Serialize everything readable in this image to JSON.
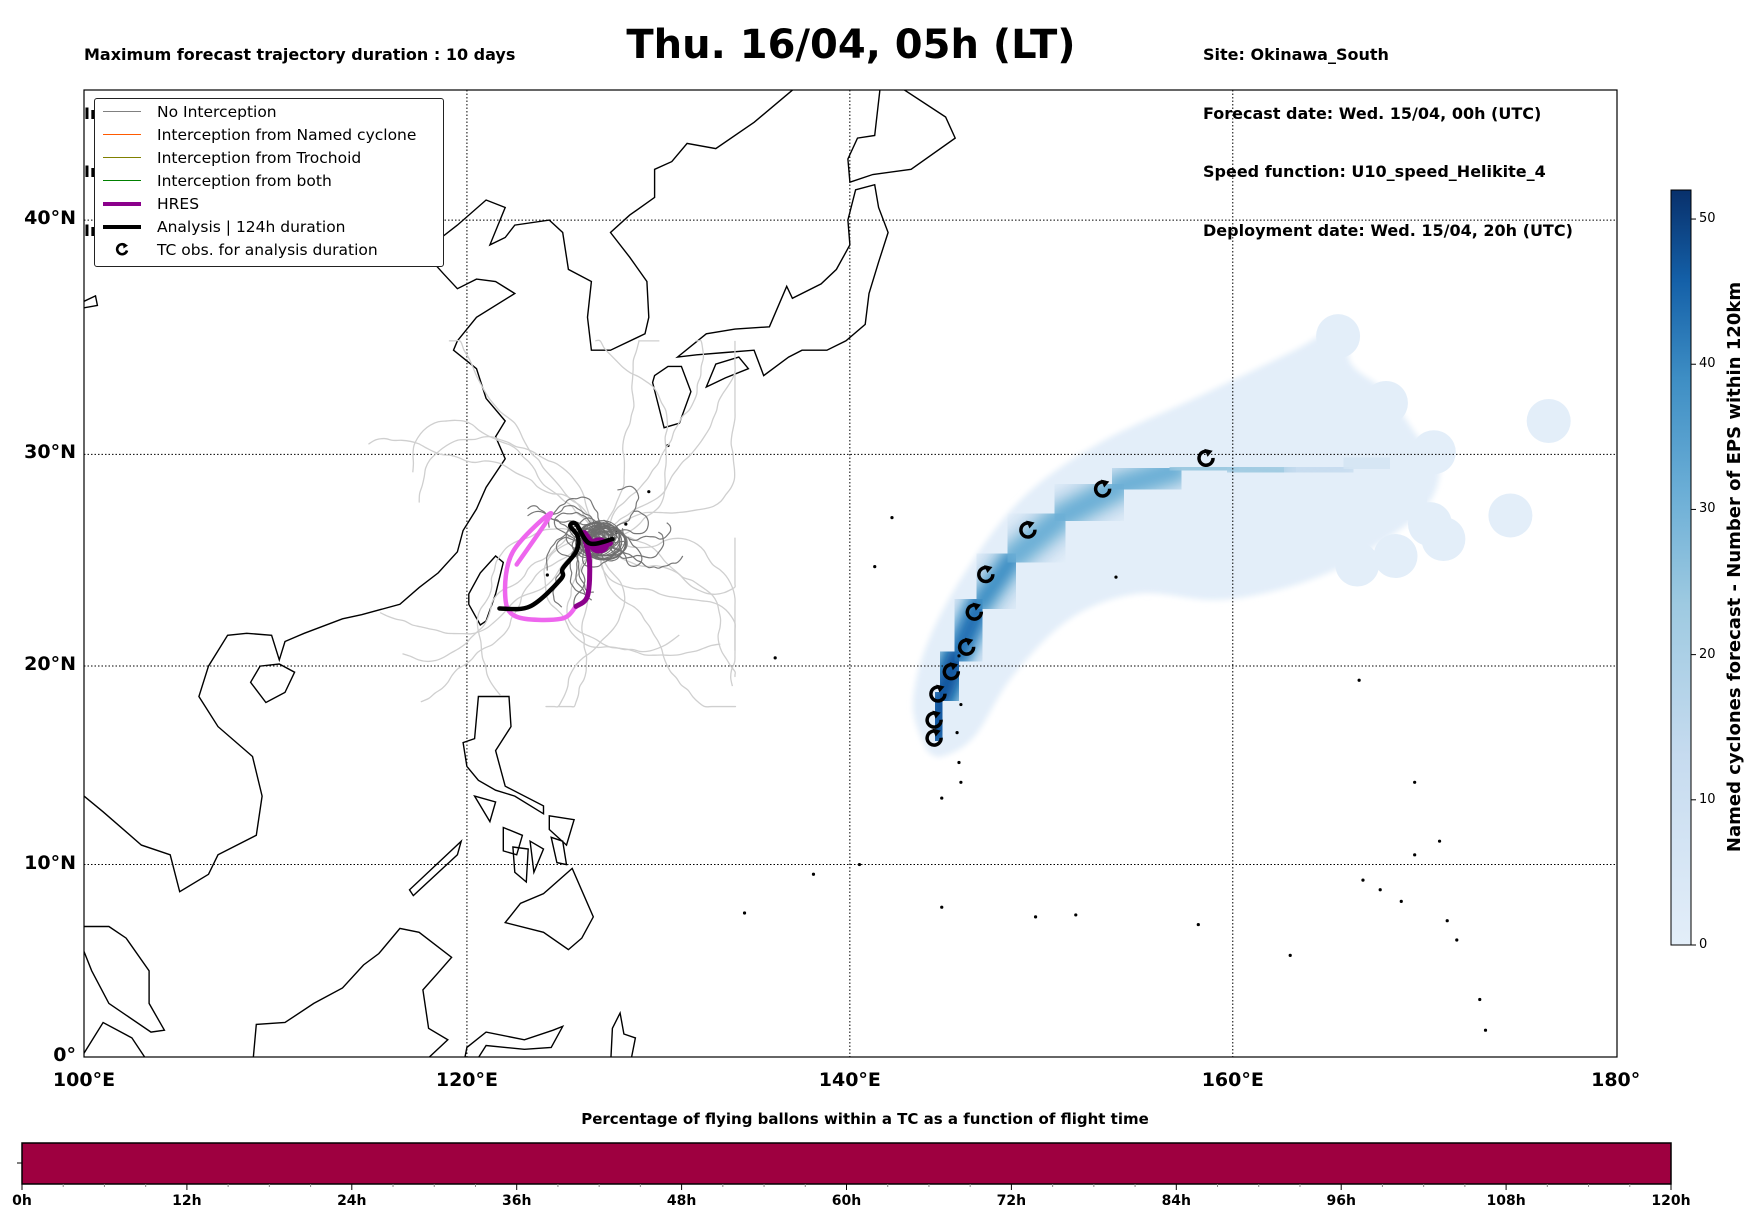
{
  "header": {
    "left": [
      "Maximum forecast trajectory duration : 10 days",
      "Intercept distance: 300km",
      "Intercept RW2 (EPS):  30km/h2",
      "Intercept RW2 (HRES): 30km/h2"
    ],
    "title": "Thu. 16/04, 05h (LT)",
    "right": [
      "Site: Okinawa_South",
      "Forecast date: Wed. 15/04, 00h (UTC)",
      "Speed function: U10_speed_Helikite_4",
      "Deployment date: Wed. 15/04, 20h (UTC)"
    ]
  },
  "legend": [
    {
      "label": "No Interception",
      "color": "#808080",
      "style": "thin"
    },
    {
      "label": "Interception from Named cyclone",
      "color": "#ff5a00",
      "style": "thin"
    },
    {
      "label": "Interception from Trochoid",
      "color": "#808000",
      "style": "thin"
    },
    {
      "label": "Interception from both",
      "color": "#008000",
      "style": "thin"
    },
    {
      "label": "HRES",
      "color": "#8b008b",
      "style": "thick"
    },
    {
      "label": "Analysis | 124h duration",
      "color": "#000000",
      "style": "thick"
    },
    {
      "label": "TC obs. for analysis duration",
      "color": "#000000",
      "style": "symbol"
    }
  ],
  "chart_data": [
    {
      "type": "map",
      "x_ticks": [
        "100°E",
        "120°E",
        "140°E",
        "160°E",
        "180°"
      ],
      "x_tick_values": [
        100,
        120,
        140,
        160,
        180
      ],
      "y_ticks": [
        "0°",
        "10°N",
        "20°N",
        "30°N",
        "40°N"
      ],
      "y_tick_values": [
        0,
        10,
        20,
        30,
        40
      ],
      "xlim": [
        100,
        180
      ],
      "ylim": [
        0,
        45
      ],
      "grid": true,
      "legend_position": "top-left",
      "analysis_track": [
        [
          121.7,
          22.8
        ],
        [
          123.3,
          22.9
        ],
        [
          124.9,
          24.2
        ],
        [
          125.0,
          24.7
        ],
        [
          125.7,
          25.5
        ],
        [
          125.8,
          26.2
        ],
        [
          125.4,
          26.7
        ],
        [
          125.7,
          26.8
        ],
        [
          126.4,
          25.9
        ],
        [
          127.6,
          26.1
        ]
      ],
      "hres_track": [
        [
          122.6,
          24.9
        ],
        [
          124.4,
          27.3
        ],
        [
          122.4,
          25.5
        ],
        [
          122.0,
          23.4
        ],
        [
          122.6,
          22.4
        ],
        [
          124.9,
          22.3
        ],
        [
          125.7,
          22.9
        ],
        [
          126.3,
          23.4
        ],
        [
          126.4,
          25.1
        ],
        [
          126.1,
          26.4
        ],
        [
          126.8,
          25.7
        ],
        [
          127.5,
          25.9
        ]
      ],
      "hres_light_until_index": 6,
      "tc_obs": [
        [
          144.4,
          16.4
        ],
        [
          144.4,
          17.3
        ],
        [
          144.6,
          18.6
        ],
        [
          145.3,
          19.7
        ],
        [
          146.1,
          20.9
        ],
        [
          146.5,
          22.6
        ],
        [
          147.1,
          24.4
        ],
        [
          149.3,
          26.5
        ],
        [
          153.2,
          28.4
        ],
        [
          158.6,
          29.8
        ]
      ],
      "eps_density_axis": [
        [
          144.5,
          16.5,
          52
        ],
        [
          144.8,
          18.5,
          48
        ],
        [
          145.6,
          20.5,
          40
        ],
        [
          146.8,
          23,
          34
        ],
        [
          148.5,
          25.2,
          32
        ],
        [
          151,
          27.1,
          30
        ],
        [
          154,
          28.5,
          27
        ],
        [
          157,
          29.3,
          24
        ],
        [
          160,
          29.4,
          18
        ],
        [
          163,
          29.2,
          12
        ],
        [
          166,
          29.4,
          6
        ],
        [
          168,
          29.8,
          3
        ]
      ],
      "eps_outlier_blobs": [
        [
          176.5,
          31.5
        ],
        [
          174.5,
          27.2
        ],
        [
          170.3,
          26.8
        ],
        [
          171,
          26.1
        ],
        [
          168.5,
          25.3
        ],
        [
          166.5,
          24.9
        ],
        [
          165.5,
          35.2
        ],
        [
          168,
          32.3
        ],
        [
          170.5,
          30.1
        ],
        [
          169,
          28
        ]
      ]
    },
    {
      "type": "colorbar",
      "label": "Named cyclones forecast - Number of EPS within 120km",
      "ticks": [
        "0",
        "10",
        "20",
        "30",
        "40",
        "50"
      ],
      "tick_values": [
        0,
        10,
        20,
        30,
        40,
        50
      ],
      "range": [
        0,
        52
      ],
      "color_low": "#e3eef9",
      "color_high": "#08306b"
    },
    {
      "type": "bar",
      "title": "Percentage of flying ballons within a TC as a function of flight time",
      "x_ticks": [
        "0h",
        "12h",
        "24h",
        "36h",
        "48h",
        "60h",
        "72h",
        "84h",
        "96h",
        "108h",
        "120h"
      ],
      "x_tick_values": [
        0,
        12,
        24,
        36,
        48,
        60,
        72,
        84,
        96,
        108,
        120
      ],
      "xlim": [
        0,
        120
      ],
      "minor_tick_step": 3,
      "fill_color": "#9e0040",
      "fill_fraction_over_time": 1.0
    }
  ]
}
